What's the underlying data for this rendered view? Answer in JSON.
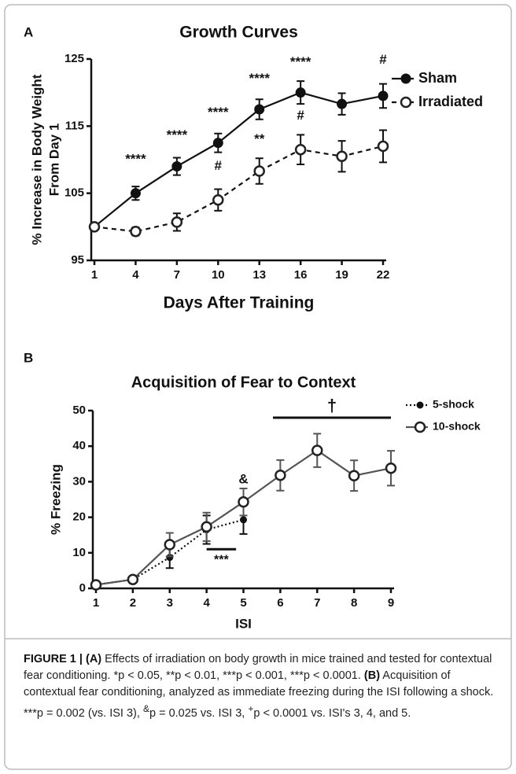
{
  "chart_data": [
    {
      "type": "line",
      "panel": "A",
      "title": "Growth Curves",
      "xlabel": "Days  After Training",
      "ylabel": [
        "% Increase in  Body Weight",
        "From Day 1"
      ],
      "x": [
        1,
        4,
        7,
        10,
        13,
        16,
        19,
        22
      ],
      "xlim": [
        1,
        22
      ],
      "xticks": [
        1,
        4,
        7,
        10,
        13,
        16,
        19,
        22
      ],
      "ylim": [
        95,
        125
      ],
      "yticks": [
        95,
        105,
        115,
        125
      ],
      "series": [
        {
          "name": "Sham",
          "color": "#111111",
          "line_style": "solid",
          "marker": "filled",
          "values": [
            100,
            105,
            109,
            112.5,
            117.5,
            120,
            118.3,
            119.5
          ],
          "errors": [
            0.4,
            1,
            1.3,
            1.4,
            1.5,
            1.7,
            1.6,
            1.8
          ]
        },
        {
          "name": "Irradiated",
          "color": "#111111",
          "line_style": "dashed",
          "marker": "open",
          "values": [
            100,
            99.3,
            100.7,
            104,
            108.3,
            111.5,
            110.5,
            112
          ],
          "errors": [
            0.4,
            0.6,
            1.3,
            1.6,
            1.9,
            2.2,
            2.3,
            2.4
          ]
        }
      ],
      "annotations": [
        {
          "text": "****",
          "x": 4,
          "y": 110
        },
        {
          "text": "****",
          "x": 7,
          "y": 113.6
        },
        {
          "text": "****",
          "x": 10,
          "y": 117
        },
        {
          "text": "****",
          "x": 13,
          "y": 122
        },
        {
          "text": "****",
          "x": 16,
          "y": 124.5
        },
        {
          "text": "#",
          "x": 22,
          "y": 124.8
        },
        {
          "text": "#",
          "x": 10,
          "y": 109
        },
        {
          "text": "**",
          "x": 13,
          "y": 113
        },
        {
          "text": "#",
          "x": 16,
          "y": 116.5
        }
      ]
    },
    {
      "type": "line",
      "panel": "B",
      "title": "Acquisition of  Fear to Context",
      "xlabel": "ISI",
      "ylabel": [
        "% Freezing"
      ],
      "x": [
        1,
        2,
        3,
        4,
        5,
        6,
        7,
        8,
        9
      ],
      "xlim": [
        1,
        9
      ],
      "xticks": [
        1,
        2,
        3,
        4,
        5,
        6,
        7,
        8,
        9
      ],
      "ylim": [
        0,
        50
      ],
      "yticks": [
        0,
        10,
        20,
        30,
        40,
        50
      ],
      "series": [
        {
          "name": "5-shock",
          "color": "#111111",
          "line_style": "dotted",
          "marker": "small",
          "values": [
            1,
            2.5,
            8.7,
            16.5,
            19.3,
            null,
            null,
            null,
            null
          ],
          "errors": [
            0.3,
            0.5,
            3,
            4,
            4,
            null,
            null,
            null,
            null
          ]
        },
        {
          "name": "10-shock",
          "color": "#555555",
          "line_style": "solid",
          "marker": "open",
          "values": [
            1,
            2.5,
            12.3,
            17.3,
            24.3,
            31.8,
            38.8,
            31.7,
            33.8
          ],
          "errors": [
            0.5,
            0.8,
            3.3,
            4,
            3.8,
            4.3,
            4.7,
            4.3,
            4.9
          ]
        }
      ],
      "annotations": [
        {
          "text": "&",
          "x": 5,
          "y": 30.5
        }
      ],
      "brackets": [
        {
          "text": "***",
          "x": [
            4,
            4.8
          ],
          "y": 11
        },
        {
          "text": "†",
          "x": [
            5.8,
            9
          ],
          "y": 48
        }
      ]
    }
  ],
  "caption": {
    "figure": "FIGURE 1 | (A)",
    "a": " Effects of irradiation on body growth in mice trained and tested for contextual fear conditioning. *p < 0.05, **p < 0.01, ***p < 0.001, ***p < 0.0001. ",
    "b_label": "(B)",
    "b": " Acquisition of contextual fear conditioning, analyzed as immediate freezing during the ISI following a shock. ***p = 0.002 (vs. ISI 3), ",
    "sup1": "&",
    "b2": "p = 0.025 vs. ISI 3, ",
    "sup2": "+",
    "b3": "p < 0.0001 vs. ISI's 3, 4, and 5."
  }
}
